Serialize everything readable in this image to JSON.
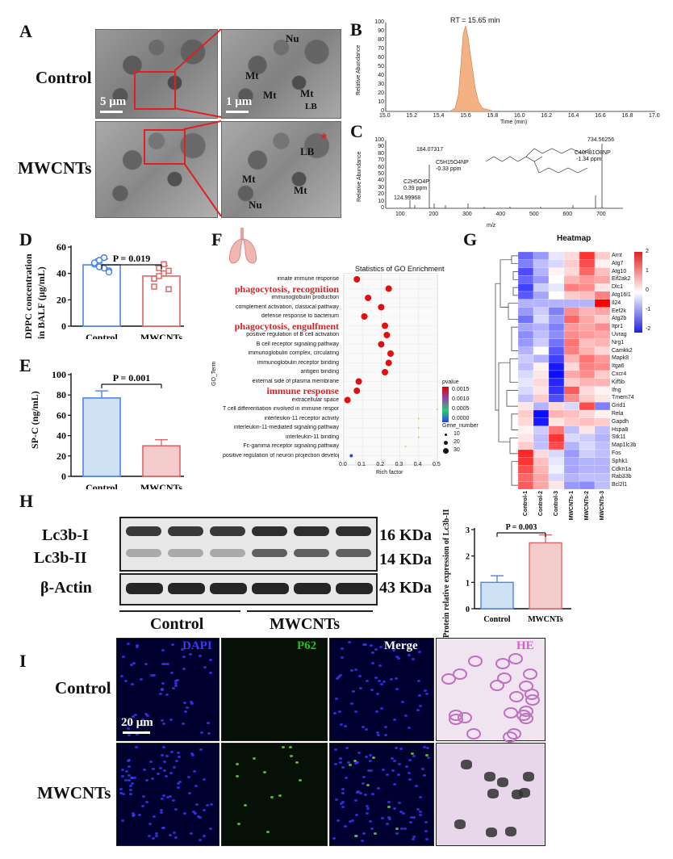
{
  "panels": {
    "A": {
      "label": "A",
      "row_labels": [
        "Control",
        "MWCNTs"
      ],
      "scale_left": "5 μm",
      "scale_right": "1 μm",
      "control_zoom_labels": [
        "Nu",
        "Mt",
        "Mt",
        "Mt",
        "LB"
      ],
      "mwcnt_zoom_labels": [
        "LB",
        "Mt",
        "Mt",
        "Nu"
      ],
      "asterisk": "*"
    },
    "B": {
      "label": "B",
      "annotation": "RT = 15.65 min",
      "ylabel": "Relative Abundance",
      "xlabel": "Time (min)",
      "xticks": [
        "15.0",
        "15.2",
        "15.4",
        "15.6",
        "15.8",
        "16.0",
        "16.2",
        "16.4",
        "16.6",
        "16.8",
        "17.0"
      ],
      "yticks": [
        "0",
        "10",
        "20",
        "30",
        "40",
        "50",
        "60",
        "70",
        "80",
        "90",
        "100"
      ],
      "color": "#f4b183"
    },
    "C": {
      "label": "C",
      "ylabel": "Relative Abundance",
      "xlabel": "m/z",
      "xticks": [
        "100",
        "200",
        "300",
        "400",
        "500",
        "600",
        "700"
      ],
      "yticks": [
        "0",
        "10",
        "20",
        "30",
        "40",
        "50",
        "60",
        "70",
        "80",
        "90",
        "100"
      ],
      "peaks": {
        "p1": "124.99968",
        "p2": "184.07317",
        "p3": "734.56256",
        "f1": "C2H5O4P",
        "f1ppm": "0.39 ppm",
        "f2": "C5H15O4NP",
        "f2ppm": "-0.33 ppm",
        "f3": "C40H81O8NP",
        "f3ppm": "-1.34 ppm"
      }
    },
    "D": {
      "label": "D",
      "ylabel_1": "DPPC concentration",
      "ylabel_2": "in BALF  (μg/mL)",
      "pvalue": "P = 0.019",
      "yticks": [
        "0",
        "20",
        "40",
        "60"
      ],
      "categories": [
        "Control",
        "MWCNTs"
      ]
    },
    "E": {
      "label": "E",
      "ylabel": "SP-C (ng/mL)",
      "pvalue": "P = 0.001",
      "yticks": [
        "0",
        "20",
        "40",
        "60",
        "80",
        "100"
      ],
      "categories": [
        "Control",
        "MWCNTs"
      ]
    },
    "F": {
      "label": "F",
      "title": "Statistics of GO Enrichment",
      "ylabel": "GO_Term",
      "xlabel": "Rich factor",
      "xticks": [
        "0.0",
        "0.1",
        "0.2",
        "0.3",
        "0.4",
        "0.5"
      ],
      "terms": [
        "innate immune response",
        "phagocytosis, recognition",
        "immunoglobulin production",
        "complement activation, classical pathway",
        "defense response to bacterium",
        "phagocytosis, engulfment",
        "positive regulation of B cell activation",
        "B cell receptor signaling pathway",
        "immunoglobulin complex, circulating",
        "immunoglobulin receptor binding",
        "antigen binding",
        "external side of plasma membrane",
        "immune response",
        "extracellular space",
        "T cell differentiation involved in immune response",
        "interleukin-11 receptor activity",
        "interleukin-11-mediated signaling pathway",
        "interleukin-11 binding",
        "Fc-gamma receptor signaling pathway",
        "positive regulation of neuron projection development"
      ],
      "highlight": [
        "phagocytosis, recognition",
        "phagocytosis, engulfment",
        "immune response"
      ],
      "pvalue_title": "pvalue",
      "pvalue_ticks": [
        "0.0015",
        "0.0010",
        "0.0005",
        "0.0000"
      ],
      "gene_title": "Gene_number",
      "gene_ticks": [
        "10",
        "20",
        "30"
      ]
    },
    "G": {
      "label": "G",
      "title": "Heatmap",
      "genes": [
        "Arnt",
        "Atg7",
        "Atg10",
        "Eif2ak2",
        "Dlc1",
        "Atg16l1",
        "Il24",
        "Eef2k",
        "Atg2b",
        "Itpr1",
        "Uvrag",
        "Nrg1",
        "Camkk2",
        "Mapk8",
        "Itga6",
        "Cxcr4",
        "Kif5b",
        "Ifng",
        "Tmem74",
        "Grid1",
        "Rela",
        "Gapdh",
        "Hspa8",
        "Stk11",
        "Map1lc3b",
        "Fos",
        "Sphk1",
        "Cdkn1a",
        "Rab33b",
        "Bcl2l1"
      ],
      "samples": [
        "Control-1",
        "Control-2",
        "Control-3",
        "MWCNTs-1",
        "MWCNTs-2",
        "MWCNTs-3"
      ],
      "scale_ticks": [
        "2",
        "1",
        "0",
        "-1",
        "-2"
      ]
    },
    "H": {
      "label": "H",
      "bands": [
        "Lc3b-I",
        "Lc3b-II",
        "β-Actin"
      ],
      "kda": [
        "16 KDa",
        "14 KDa",
        "43 KDa"
      ],
      "groups": [
        "Control",
        "MWCNTs"
      ],
      "ylabel": "Protein relative expression of Lc3b-II",
      "pvalue": "P = 0.003",
      "yticks": [
        "0",
        "1",
        "2",
        "3"
      ],
      "categories": [
        "Control",
        "MWCNTs"
      ]
    },
    "I": {
      "label": "I",
      "columns": [
        "DAPI",
        "P62",
        "Merge",
        "HE"
      ],
      "rows": [
        "Control",
        "MWCNTs"
      ],
      "scale": "20 μm"
    }
  },
  "chart_data": [
    {
      "panel": "D",
      "type": "bar",
      "categories": [
        "Control",
        "MWCNTs"
      ],
      "values": [
        46.5,
        38
      ],
      "errors": [
        4.5,
        8
      ],
      "points": [
        [
          47,
          50,
          44,
          42,
          48,
          45,
          52,
          41
        ],
        [
          36,
          44,
          40,
          28,
          30,
          38,
          47,
          42
        ]
      ],
      "ylim": [
        0,
        60
      ],
      "ylabel": "DPPC concentration in BALF (μg/mL)",
      "colors": [
        "#4a86e8",
        "#e06666"
      ]
    },
    {
      "panel": "E",
      "type": "bar",
      "categories": [
        "Control",
        "MWCNTs"
      ],
      "values": [
        77,
        30
      ],
      "errors": [
        7,
        6
      ],
      "ylim": [
        0,
        100
      ],
      "ylabel": "SP-C (ng/mL)",
      "fills": [
        "#cfe2f3",
        "#f4cccc"
      ],
      "colors": [
        "#4a86e8",
        "#e06666"
      ]
    },
    {
      "panel": "H",
      "type": "bar",
      "categories": [
        "Control",
        "MWCNTs"
      ],
      "values": [
        1.0,
        2.5
      ],
      "errors": [
        0.25,
        0.3
      ],
      "ylim": [
        0,
        3
      ],
      "ylabel": "Protein relative expression of Lc3b-II",
      "fills": [
        "#cfe2f3",
        "#f4cccc"
      ],
      "colors": [
        "#4a86e8",
        "#e06666"
      ]
    },
    {
      "panel": "F",
      "type": "scatter",
      "terms_count": 20,
      "rich_factor": [
        0.07,
        0.24,
        0.13,
        0.2,
        0.11,
        0.22,
        0.23,
        0.2,
        0.25,
        0.24,
        0.22,
        0.08,
        0.07,
        0.02,
        0.5,
        0.4,
        0.4,
        0.4,
        0.33,
        0.04
      ],
      "gene_number": [
        30,
        30,
        30,
        30,
        30,
        30,
        30,
        30,
        30,
        30,
        30,
        30,
        30,
        30,
        1,
        2,
        2,
        2,
        1,
        5
      ],
      "pvalue": [
        0,
        0,
        0,
        0,
        0,
        0,
        0,
        0,
        0,
        0,
        0,
        0,
        0,
        0,
        0.0009,
        0.0009,
        0.0009,
        0.0009,
        0.0009,
        0.0017
      ],
      "xlim": [
        0,
        0.5
      ]
    },
    {
      "panel": "G",
      "type": "heatmap",
      "values": [
        [
          -1.2,
          -0.8,
          -0.2,
          0.3,
          1.6,
          0.4
        ],
        [
          -1.0,
          -0.5,
          -0.3,
          0.4,
          1.4,
          0.1
        ],
        [
          -1.4,
          -0.6,
          0.1,
          0.3,
          1.2,
          0.5
        ],
        [
          -1.2,
          -0.8,
          0.0,
          0.6,
          0.8,
          0.7
        ],
        [
          -1.5,
          -0.4,
          -0.2,
          1.0,
          0.9,
          0.2
        ],
        [
          -1.3,
          -0.7,
          0.0,
          0.4,
          0.5,
          1.0
        ],
        [
          -0.6,
          -0.6,
          -0.6,
          -0.6,
          -0.6,
          2.0
        ],
        [
          -0.8,
          -0.4,
          -1.0,
          0.9,
          0.6,
          0.7
        ],
        [
          -1.1,
          -0.3,
          -0.8,
          1.2,
          0.7,
          0.4
        ],
        [
          -0.7,
          -0.6,
          -1.0,
          0.8,
          0.7,
          0.9
        ],
        [
          -0.9,
          -0.5,
          -0.9,
          0.9,
          0.8,
          0.7
        ],
        [
          -0.8,
          -0.4,
          -1.1,
          1.1,
          0.5,
          0.6
        ],
        [
          -0.6,
          0.0,
          -1.3,
          1.0,
          0.6,
          0.3
        ],
        [
          -0.4,
          -0.6,
          -1.5,
          0.6,
          1.1,
          0.8
        ],
        [
          -0.5,
          0.1,
          -1.8,
          0.3,
          1.0,
          0.9
        ],
        [
          -0.3,
          0.2,
          -1.9,
          0.7,
          0.9,
          0.4
        ],
        [
          -0.2,
          0.3,
          -1.7,
          0.4,
          0.6,
          0.6
        ],
        [
          -0.3,
          0.2,
          -1.6,
          1.3,
          0.3,
          0.1
        ],
        [
          -0.5,
          0.4,
          -1.4,
          0.9,
          0.4,
          0.2
        ],
        [
          0.2,
          -0.6,
          0.3,
          -0.3,
          1.4,
          -1.0
        ],
        [
          0.4,
          -1.9,
          0.6,
          0.5,
          0.3,
          0.1
        ],
        [
          0.3,
          -1.8,
          0.2,
          0.4,
          0.5,
          0.4
        ],
        [
          0.1,
          -0.4,
          1.1,
          -0.5,
          0.2,
          -0.5
        ],
        [
          0.2,
          -0.5,
          1.6,
          -0.3,
          -0.4,
          -0.6
        ],
        [
          0.4,
          -0.5,
          1.4,
          -0.6,
          -0.3,
          -0.5
        ],
        [
          1.7,
          0.3,
          -0.3,
          -0.8,
          -0.4,
          -0.5
        ],
        [
          1.6,
          0.5,
          -0.2,
          -0.7,
          -0.6,
          -0.6
        ],
        [
          1.4,
          0.6,
          -0.1,
          -0.7,
          -0.6,
          -0.6
        ],
        [
          1.2,
          0.7,
          -0.3,
          -0.6,
          -0.5,
          -0.5
        ],
        [
          1.3,
          0.7,
          0.2,
          -0.8,
          -0.9,
          -0.5
        ]
      ],
      "zlim": [
        -2,
        2
      ]
    }
  ]
}
